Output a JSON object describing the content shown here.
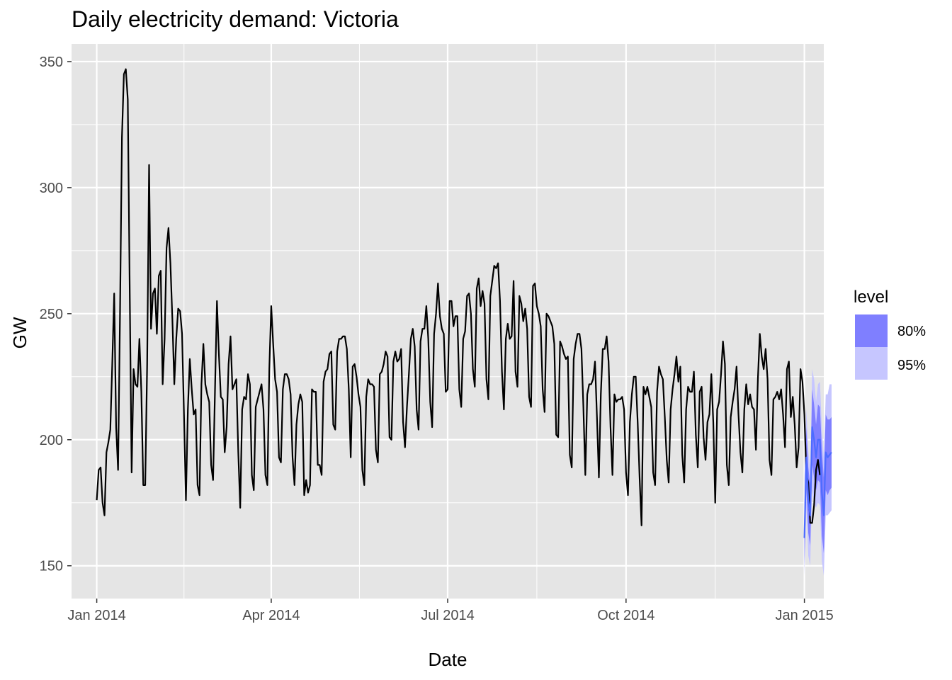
{
  "chart_data": {
    "type": "line",
    "title": "Daily electricity demand: Victoria",
    "xlabel": "Date",
    "ylabel": "GW",
    "x_ticks": [
      "Jan 2014",
      "Apr 2014",
      "Jul 2014",
      "Oct 2014",
      "Jan 2015"
    ],
    "x_tick_dates": [
      "2014-01-01",
      "2014-04-01",
      "2014-07-01",
      "2014-10-01",
      "2015-01-01"
    ],
    "y_ticks": [
      150,
      200,
      250,
      300,
      350
    ],
    "xlim": [
      "2013-12-19",
      "2015-01-11"
    ],
    "ylim": [
      137,
      357
    ],
    "grid": true,
    "legend": {
      "title": "level",
      "placement": "right",
      "entries": [
        "80%",
        "95%"
      ]
    },
    "colors": {
      "panel": "#e5e5e5",
      "grid": "#ffffff",
      "history_line": "#000000",
      "forecast_line": "#4d6bff",
      "band80": "#7f7fff",
      "band95": "#c6c6ff"
    },
    "series": [
      {
        "kind": "history",
        "start": "2014-01-01",
        "values": [
          176,
          188,
          189,
          175,
          170,
          195,
          199,
          204,
          230,
          258,
          205,
          188,
          250,
          320,
          345,
          347,
          335,
          260,
          187,
          228,
          222,
          221,
          240,
          219,
          182,
          182,
          230,
          309,
          244,
          258,
          260,
          242,
          265,
          267,
          222,
          240,
          276,
          284,
          270,
          248,
          222,
          240,
          252,
          251,
          242,
          210,
          176,
          212,
          232,
          220,
          210,
          212,
          182,
          178,
          222,
          238,
          222,
          218,
          215,
          190,
          184,
          220,
          255,
          234,
          217,
          216,
          195,
          205,
          230,
          241,
          220,
          222,
          224,
          195,
          173,
          212,
          217,
          216,
          226,
          222,
          186,
          180,
          213,
          216,
          219,
          222,
          212,
          186,
          182,
          228,
          253,
          238,
          224,
          219,
          193,
          191,
          220,
          226,
          226,
          224,
          218,
          193,
          182,
          206,
          214,
          218,
          215,
          178,
          184,
          179,
          182,
          220,
          219,
          219,
          190,
          190,
          186,
          223,
          227,
          228,
          234,
          235,
          206,
          204,
          235,
          240,
          240,
          241,
          241,
          236,
          220,
          193,
          229,
          230,
          225,
          218,
          213,
          188,
          182,
          217,
          224,
          222,
          222,
          221,
          196,
          191,
          226,
          227,
          230,
          235,
          233,
          201,
          200,
          231,
          235,
          231,
          232,
          236,
          207,
          197,
          213,
          226,
          240,
          244,
          237,
          212,
          204,
          239,
          244,
          244,
          253,
          240,
          215,
          205,
          242,
          250,
          262,
          249,
          244,
          242,
          219,
          220,
          255,
          255,
          245,
          249,
          249,
          220,
          213,
          240,
          243,
          257,
          258,
          250,
          228,
          221,
          260,
          264,
          253,
          259,
          254,
          224,
          216,
          257,
          263,
          269,
          268,
          270,
          255,
          227,
          212,
          240,
          246,
          240,
          241,
          263,
          227,
          221,
          257,
          254,
          247,
          252,
          244,
          217,
          213,
          261,
          262,
          253,
          250,
          245,
          220,
          211,
          250,
          249,
          247,
          245,
          238,
          202,
          201,
          239,
          237,
          234,
          232,
          233,
          194,
          189,
          232,
          238,
          242,
          242,
          236,
          213,
          186,
          218,
          222,
          222,
          224,
          231,
          209,
          185,
          218,
          236,
          236,
          241,
          231,
          205,
          186,
          218,
          215,
          216,
          216,
          217,
          212,
          187,
          178,
          207,
          218,
          225,
          225,
          207,
          185,
          166,
          221,
          218,
          221,
          217,
          213,
          187,
          182,
          219,
          229,
          226,
          224,
          209,
          192,
          183,
          212,
          220,
          226,
          233,
          223,
          229,
          194,
          183,
          212,
          221,
          219,
          219,
          227,
          202,
          189,
          219,
          221,
          201,
          192,
          207,
          210,
          226,
          207,
          175,
          212,
          215,
          226,
          239,
          230,
          190,
          182,
          209,
          215,
          220,
          229,
          210,
          195,
          187,
          212,
          222,
          214,
          218,
          213,
          212,
          196,
          224,
          242,
          233,
          228,
          236,
          224,
          192,
          186,
          216,
          217,
          219,
          216,
          220,
          210,
          197,
          228,
          231,
          209,
          217,
          206,
          189,
          197,
          228,
          223,
          210,
          186,
          183,
          167,
          167,
          174,
          188,
          192,
          186
        ]
      }
    ],
    "forecast": {
      "start": "2015-01-01",
      "mean": [
        161,
        193,
        176,
        170,
        205,
        200,
        193,
        200,
        200,
        179,
        170,
        195,
        193,
        194,
        195
      ],
      "lower80": [
        150,
        181,
        163,
        158,
        190,
        185,
        180,
        184,
        183,
        162,
        155,
        180,
        178,
        180,
        181
      ],
      "upper80": [
        172,
        205,
        189,
        182,
        220,
        214,
        206,
        214,
        213,
        196,
        185,
        210,
        208,
        208,
        209
      ],
      "lower95": [
        146,
        173,
        154,
        150,
        180,
        175,
        173,
        175,
        174,
        152,
        146,
        170,
        170,
        171,
        172
      ],
      "upper95": [
        184,
        212,
        196,
        188,
        228,
        224,
        215,
        222,
        223,
        205,
        193,
        218,
        218,
        222,
        222
      ]
    }
  }
}
